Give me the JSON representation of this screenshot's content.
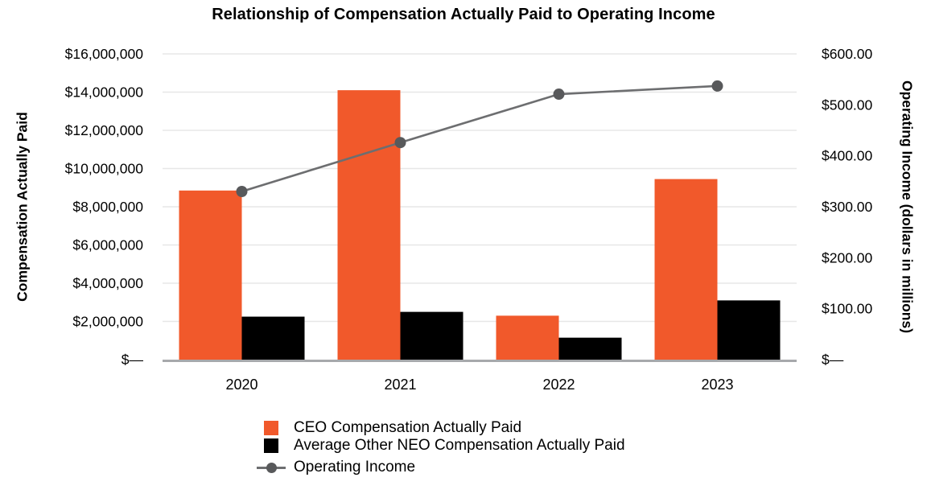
{
  "title": "Relationship of Compensation Actually Paid to Operating Income",
  "colors": {
    "ceo_bar": "#F1592B",
    "neo_bar": "#000000",
    "line": "#6D6E70",
    "marker": "#58595B",
    "gridline": "#E7E7E7",
    "baseline": "#A7A9AC",
    "background": "#FFFFFF"
  },
  "chart_data": {
    "type": "bar",
    "subtype": "grouped-bars-with-line-overlay",
    "title": "Relationship of Compensation Actually Paid to Operating Income",
    "categories": [
      "2020",
      "2021",
      "2022",
      "2023"
    ],
    "series": [
      {
        "name": "CEO Compensation Actually Paid",
        "type": "bar",
        "axis": "left",
        "color": "#F1592B",
        "values": [
          8850000,
          14100000,
          2300000,
          9450000
        ]
      },
      {
        "name": "Average Other NEO Compensation Actually Paid",
        "type": "bar",
        "axis": "left",
        "color": "#000000",
        "values": [
          2250000,
          2500000,
          1150000,
          3100000
        ]
      },
      {
        "name": "Operating Income",
        "type": "line",
        "axis": "right",
        "color": "#6D6E70",
        "marker_color": "#58595B",
        "values": [
          330,
          426,
          521,
          537
        ]
      }
    ],
    "left_axis": {
      "label": "Compensation Actually Paid",
      "min": 0,
      "max": 16000000,
      "ticks": [
        {
          "value": 0,
          "label": "$—"
        },
        {
          "value": 2000000,
          "label": "$2,000,000"
        },
        {
          "value": 4000000,
          "label": "$4,000,000"
        },
        {
          "value": 6000000,
          "label": "$6,000,000"
        },
        {
          "value": 8000000,
          "label": "$8,000,000"
        },
        {
          "value": 10000000,
          "label": "$10,000,000"
        },
        {
          "value": 12000000,
          "label": "$12,000,000"
        },
        {
          "value": 14000000,
          "label": "$14,000,000"
        },
        {
          "value": 16000000,
          "label": "$16,000,000"
        }
      ]
    },
    "right_axis": {
      "label": "Operating Income (dollars in millions)",
      "min": 0,
      "max": 600,
      "ticks": [
        {
          "value": 0,
          "label": "$—"
        },
        {
          "value": 100,
          "label": "$100.00"
        },
        {
          "value": 200,
          "label": "$200.00"
        },
        {
          "value": 300,
          "label": "$300.00"
        },
        {
          "value": 400,
          "label": "$400.00"
        },
        {
          "value": 500,
          "label": "$500.00"
        },
        {
          "value": 600,
          "label": "$600.00"
        }
      ]
    },
    "grid": "horizontal",
    "legend_position": "bottom-left"
  }
}
